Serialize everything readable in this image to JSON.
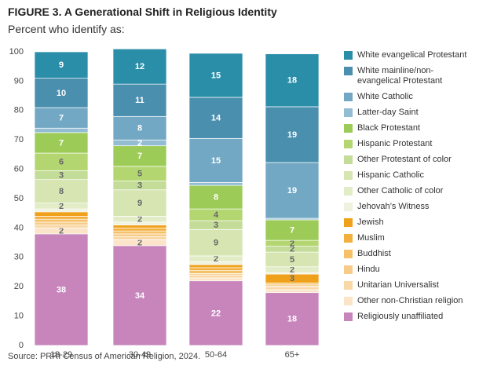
{
  "chart_data": {
    "type": "stacked_bar",
    "title": "FIGURE 3. A Generational Shift in Religious Identity",
    "subtitle": "Percent who identify as:",
    "source": "Source: PRRI Census of American Religion, 2024.",
    "categories": [
      "18-29",
      "30-49",
      "50-64",
      "65+"
    ],
    "ylim": [
      0,
      100
    ],
    "yticks": [
      0,
      10,
      20,
      30,
      40,
      50,
      60,
      70,
      80,
      90,
      100
    ],
    "grid": false,
    "series": [
      {
        "name": "White evangelical Protestant",
        "color": "#2b8ea9",
        "values": [
          9,
          12,
          15,
          18
        ]
      },
      {
        "name": "White mainline/non-evangelical Protestant",
        "color": "#4a8fae",
        "values": [
          10,
          11,
          14,
          19
        ]
      },
      {
        "name": "White Catholic",
        "color": "#72a8c4",
        "values": [
          7,
          8,
          15,
          19
        ]
      },
      {
        "name": "Latter-day Saint",
        "color": "#93bdd3",
        "values": [
          1.5,
          2,
          1,
          0.5
        ]
      },
      {
        "name": "Black Protestant",
        "color": "#9dcb58",
        "values": [
          7,
          7,
          8,
          7
        ]
      },
      {
        "name": "Hispanic Protestant",
        "color": "#b4d670",
        "values": [
          6,
          5,
          4,
          2
        ]
      },
      {
        "name": "Other Protestant of color",
        "color": "#c3dc97",
        "values": [
          3,
          3,
          3,
          2
        ]
      },
      {
        "name": "Hispanic Catholic",
        "color": "#d6e5b1",
        "values": [
          8,
          9,
          9,
          5
        ]
      },
      {
        "name": "Other Catholic of color",
        "color": "#e2ecc6",
        "values": [
          2,
          2,
          2,
          2
        ]
      },
      {
        "name": "Jehovah’s Witness",
        "color": "#eef2de",
        "values": [
          1,
          1,
          1,
          0.5
        ]
      },
      {
        "name": "Jewish",
        "color": "#f0a11c",
        "values": [
          1.5,
          1,
          1,
          3
        ]
      },
      {
        "name": "Muslim",
        "color": "#f3af3d",
        "values": [
          1,
          1,
          1,
          0.5
        ]
      },
      {
        "name": "Buddhist",
        "color": "#f5c068",
        "values": [
          1,
          1,
          1,
          0.5
        ]
      },
      {
        "name": "Hindu",
        "color": "#f7cc8a",
        "values": [
          1,
          1,
          0.5,
          0.3
        ]
      },
      {
        "name": "Unitarian Universalist",
        "color": "#f9d8a8",
        "values": [
          1,
          1,
          1,
          1
        ]
      },
      {
        "name": "Other non-Christian religion",
        "color": "#fbe4c8",
        "values": [
          2,
          2,
          1,
          1
        ]
      },
      {
        "name": "Religiously unaffiliated",
        "color": "#c785bc",
        "values": [
          38,
          34,
          22,
          18
        ]
      }
    ]
  }
}
